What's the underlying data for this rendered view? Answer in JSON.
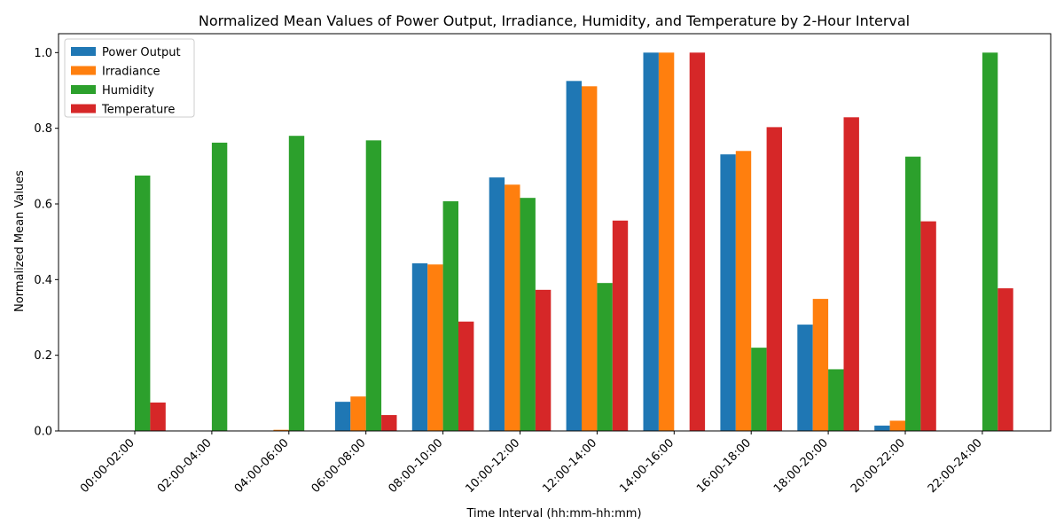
{
  "chart_data": {
    "type": "bar",
    "title": "Normalized Mean Values of Power Output, Irradiance, Humidity, and Temperature by 2-Hour Interval",
    "xlabel": "Time Interval (hh:mm-hh:mm)",
    "ylabel": "Normalized Mean Values",
    "ylim": [
      0,
      1.05
    ],
    "yticks": [
      "0.0",
      "0.2",
      "0.4",
      "0.6",
      "0.8",
      "1.0"
    ],
    "grid": false,
    "legend_position": "top-left",
    "categories": [
      "00:00-02:00",
      "02:00-04:00",
      "04:00-06:00",
      "06:00-08:00",
      "08:00-10:00",
      "10:00-12:00",
      "12:00-14:00",
      "14:00-16:00",
      "16:00-18:00",
      "18:00-20:00",
      "20:00-22:00",
      "22:00-24:00"
    ],
    "series": [
      {
        "name": "Power Output",
        "color": "#1f77b4",
        "values": [
          0,
          0,
          0,
          0.077,
          0.443,
          0.67,
          0.925,
          1.0,
          0.731,
          0.281,
          0.014,
          0
        ]
      },
      {
        "name": "Irradiance",
        "color": "#ff7f0e",
        "values": [
          0,
          0,
          0.003,
          0.091,
          0.44,
          0.651,
          0.911,
          1.0,
          0.74,
          0.349,
          0.027,
          0
        ]
      },
      {
        "name": "Humidity",
        "color": "#2ca02c",
        "values": [
          0.675,
          0.762,
          0.78,
          0.768,
          0.607,
          0.616,
          0.391,
          0,
          0.22,
          0.163,
          0.725,
          1.0
        ]
      },
      {
        "name": "Temperature",
        "color": "#d62728",
        "values": [
          0.075,
          0,
          0,
          0.042,
          0.289,
          0.373,
          0.556,
          1.0,
          0.803,
          0.829,
          0.554,
          0.377
        ]
      }
    ]
  }
}
